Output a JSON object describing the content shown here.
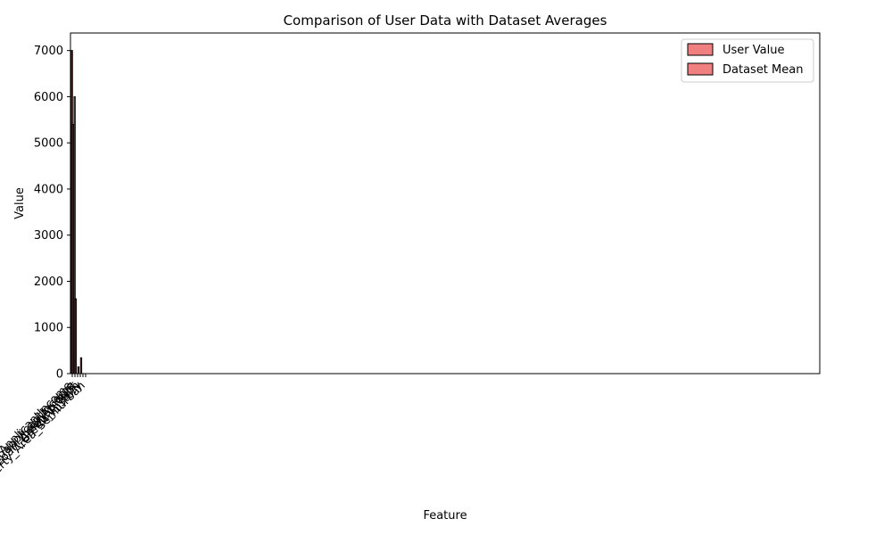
{
  "chart_data": {
    "type": "bar",
    "title": "Comparison of User Data with Dataset Averages",
    "xlabel": "Feature",
    "ylabel": "Value",
    "ylim": [
      0,
      7380
    ],
    "yticks": [
      0,
      1000,
      2000,
      3000,
      4000,
      5000,
      6000,
      7000
    ],
    "legend": "top-right",
    "categories": [
      "ApplicantIncome",
      "CoapplicantIncome",
      "LoanAmount",
      "Loan_Amount_Term",
      "Credit_History",
      "Property_Area_Semiurban"
    ],
    "series": [
      {
        "name": "User Value",
        "color": "#f08080",
        "values": [
          7000,
          6000,
          0,
          0,
          0,
          0
        ]
      },
      {
        "name": "Dataset Mean",
        "color": "#f08080",
        "values": [
          5400,
          1620,
          146,
          342,
          1,
          0
        ]
      }
    ]
  }
}
